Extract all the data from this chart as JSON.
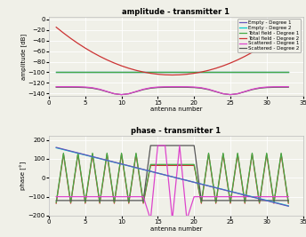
{
  "title_amp": "amplitude - transmitter 1",
  "title_phase": "phase - transmitter 1",
  "xlabel": "antenna number",
  "ylabel_amp": "amplitude [dB]",
  "ylabel_phase": "phase [°]",
  "xlim": [
    0,
    35
  ],
  "ylim_amp": [
    -145,
    5
  ],
  "ylim_phase": [
    -200,
    220
  ],
  "yticks_amp": [
    0,
    -20,
    -40,
    -60,
    -80,
    -100,
    -120,
    -140
  ],
  "yticks_phase": [
    200,
    100,
    0,
    -100,
    -200
  ],
  "xticks": [
    0,
    5,
    10,
    15,
    20,
    25,
    30,
    35
  ],
  "n_antennas": 33,
  "colors": {
    "empty_d1": "#6655bb",
    "empty_d2": "#00cccc",
    "total_d1": "#44aa44",
    "total_d2": "#cc3333",
    "scattered_d1": "#dd44cc",
    "scattered_d2": "#555555"
  },
  "legend_labels": [
    "Empty - Degree 1",
    "Empty - Degree 2",
    "Total field - Degree 1",
    "Total field - Degree 2",
    "Scattered - Degree 1",
    "Scattered - Degree 2"
  ],
  "background": "#f0f0e8",
  "figsize": [
    3.44,
    2.67
  ],
  "dpi": 100
}
